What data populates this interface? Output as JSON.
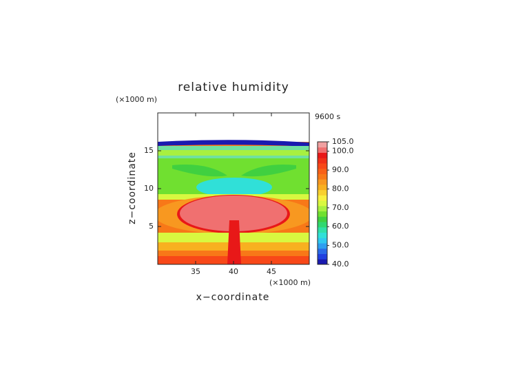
{
  "chart_data": {
    "type": "contour",
    "title": "relative humidity",
    "annotation": "9600 s",
    "x_label": "x−coordinate",
    "y_label": "z−coordinate",
    "x_unit": "(×1000 m)",
    "y_unit": "(×1000 m)",
    "xlim": [
      30,
      50
    ],
    "xticks": [
      35,
      40,
      45
    ],
    "ylim": [
      0,
      20
    ],
    "yticks": [
      5,
      10,
      15
    ],
    "clim": [
      40,
      105
    ],
    "cticks": [
      {
        "value": 40,
        "label": "40.0"
      },
      {
        "value": 50,
        "label": "50.0"
      },
      {
        "value": 60,
        "label": "60.0"
      },
      {
        "value": 70,
        "label": "70.0"
      },
      {
        "value": 80,
        "label": "80.0"
      },
      {
        "value": 90,
        "label": "90.0"
      },
      {
        "value": 100,
        "label": "100.0"
      },
      {
        "value": 105,
        "label": "105.0"
      }
    ],
    "colors": [
      "#1a1ab0",
      "#2040e0",
      "#2a6ae8",
      "#2e9ef0",
      "#30c8f0",
      "#30e0d8",
      "#30e0a8",
      "#30d870",
      "#40d040",
      "#70e030",
      "#a8f040",
      "#d8f840",
      "#f8f040",
      "#f8d030",
      "#f8b020",
      "#f89820",
      "#f87818",
      "#f86018",
      "#f84818",
      "#f03018",
      "#e81818",
      "#f07070",
      "#f0a0a0"
    ]
  }
}
